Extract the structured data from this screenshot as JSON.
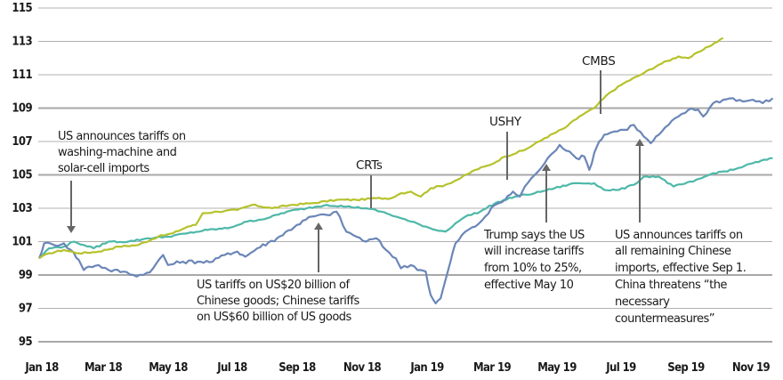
{
  "chart_data": {
    "type": "line",
    "title": "",
    "xlabel": "",
    "ylabel": "",
    "ylim": [
      95,
      115
    ],
    "y_ticks": [
      95,
      97,
      99,
      101,
      103,
      105,
      107,
      109,
      111,
      113,
      115
    ],
    "x_tick_labels": [
      "Jan 18",
      "Mar 18",
      "May 18",
      "Jul 18",
      "Sep 18",
      "Nov 18",
      "Jan 19",
      "Mar 19",
      "May 19",
      "Jul 19",
      "Sep 19",
      "Nov 19"
    ],
    "grid": true,
    "legend": "inline labels",
    "x": [
      "2018-01",
      "2018-02",
      "2018-03",
      "2018-04",
      "2018-05",
      "2018-06",
      "2018-07",
      "2018-08",
      "2018-09",
      "2018-10",
      "2018-11",
      "2018-12",
      "2019-01",
      "2019-02",
      "2019-03",
      "2019-04",
      "2019-05",
      "2019-06",
      "2019-07",
      "2019-08",
      "2019-09",
      "2019-10",
      "2019-11",
      "2019-12"
    ],
    "series": [
      {
        "name": "CMBS",
        "color": "#b5c22b",
        "points": [
          [
            0,
            100.0
          ],
          [
            10,
            100.3
          ],
          [
            25,
            100.5
          ],
          [
            40,
            100.3
          ],
          [
            60,
            100.4
          ],
          [
            80,
            100.7
          ],
          [
            100,
            100.8
          ],
          [
            120,
            101.3
          ],
          [
            135,
            101.5
          ],
          [
            150,
            101.9
          ],
          [
            158,
            102.0
          ],
          [
            165,
            102.7
          ],
          [
            180,
            102.8
          ],
          [
            200,
            102.9
          ],
          [
            215,
            103.2
          ],
          [
            235,
            103.0
          ],
          [
            255,
            103.2
          ],
          [
            275,
            103.3
          ],
          [
            300,
            103.5
          ],
          [
            320,
            103.5
          ],
          [
            340,
            103.6
          ],
          [
            355,
            103.6
          ],
          [
            365,
            103.9
          ],
          [
            375,
            104.0
          ],
          [
            385,
            103.7
          ],
          [
            395,
            104.2
          ],
          [
            410,
            104.4
          ],
          [
            425,
            104.8
          ],
          [
            440,
            105.3
          ],
          [
            455,
            105.6
          ],
          [
            470,
            106.1
          ],
          [
            490,
            106.5
          ],
          [
            510,
            107.2
          ],
          [
            530,
            107.8
          ],
          [
            545,
            108.5
          ],
          [
            560,
            109.0
          ],
          [
            575,
            109.9
          ],
          [
            590,
            110.5
          ],
          [
            610,
            111.1
          ],
          [
            625,
            111.6
          ],
          [
            645,
            112.1
          ],
          [
            655,
            112.0
          ],
          [
            670,
            112.5
          ],
          [
            690,
            113.2
          ]
        ]
      },
      {
        "name": "USHY",
        "color": "#6b86b8",
        "points": [
          [
            0,
            100.0
          ],
          [
            5,
            100.9
          ],
          [
            15,
            100.8
          ],
          [
            25,
            100.9
          ],
          [
            32,
            100.5
          ],
          [
            40,
            99.9
          ],
          [
            45,
            99.3
          ],
          [
            50,
            99.5
          ],
          [
            60,
            99.6
          ],
          [
            70,
            99.3
          ],
          [
            85,
            99.2
          ],
          [
            95,
            99.0
          ],
          [
            105,
            99.0
          ],
          [
            115,
            99.4
          ],
          [
            125,
            100.2
          ],
          [
            130,
            99.6
          ],
          [
            145,
            99.8
          ],
          [
            160,
            99.8
          ],
          [
            175,
            99.8
          ],
          [
            190,
            100.3
          ],
          [
            200,
            100.4
          ],
          [
            208,
            100.1
          ],
          [
            220,
            100.6
          ],
          [
            240,
            101.2
          ],
          [
            260,
            102.0
          ],
          [
            275,
            102.5
          ],
          [
            290,
            102.6
          ],
          [
            300,
            102.8
          ],
          [
            310,
            101.6
          ],
          [
            320,
            101.3
          ],
          [
            330,
            101.0
          ],
          [
            340,
            101.2
          ],
          [
            350,
            100.5
          ],
          [
            360,
            100.0
          ],
          [
            365,
            99.4
          ],
          [
            375,
            99.6
          ],
          [
            385,
            99.3
          ],
          [
            390,
            99.2
          ],
          [
            395,
            97.8
          ],
          [
            400,
            97.3
          ],
          [
            405,
            97.6
          ],
          [
            410,
            98.7
          ],
          [
            415,
            99.8
          ],
          [
            420,
            100.9
          ],
          [
            430,
            101.6
          ],
          [
            440,
            101.9
          ],
          [
            450,
            102.5
          ],
          [
            460,
            103.2
          ],
          [
            470,
            103.5
          ],
          [
            478,
            104.0
          ],
          [
            485,
            103.7
          ],
          [
            490,
            104.3
          ],
          [
            500,
            105.0
          ],
          [
            510,
            105.7
          ],
          [
            518,
            106.3
          ],
          [
            525,
            106.8
          ],
          [
            535,
            106.4
          ],
          [
            542,
            106.0
          ],
          [
            550,
            106.1
          ],
          [
            555,
            105.3
          ],
          [
            560,
            106.3
          ],
          [
            565,
            107.0
          ],
          [
            570,
            107.4
          ],
          [
            580,
            107.6
          ],
          [
            590,
            107.7
          ],
          [
            600,
            108.0
          ],
          [
            610,
            107.3
          ],
          [
            617,
            106.9
          ],
          [
            625,
            107.4
          ],
          [
            635,
            108.0
          ],
          [
            645,
            108.5
          ],
          [
            655,
            108.9
          ],
          [
            665,
            108.9
          ],
          [
            670,
            108.5
          ],
          [
            680,
            109.3
          ],
          [
            690,
            109.5
          ],
          [
            700,
            109.6
          ],
          [
            710,
            109.4
          ],
          [
            720,
            109.5
          ],
          [
            730,
            109.3
          ],
          [
            740,
            109.6
          ]
        ]
      },
      {
        "name": "CRTs",
        "color": "#4db8a8",
        "points": [
          [
            0,
            100.0
          ],
          [
            10,
            100.6
          ],
          [
            25,
            100.7
          ],
          [
            35,
            101.0
          ],
          [
            45,
            100.8
          ],
          [
            55,
            100.6
          ],
          [
            70,
            101.0
          ],
          [
            90,
            101.0
          ],
          [
            110,
            101.2
          ],
          [
            130,
            101.3
          ],
          [
            150,
            101.5
          ],
          [
            170,
            101.7
          ],
          [
            190,
            101.8
          ],
          [
            210,
            102.2
          ],
          [
            230,
            102.4
          ],
          [
            250,
            102.8
          ],
          [
            270,
            103.0
          ],
          [
            290,
            103.2
          ],
          [
            310,
            103.1
          ],
          [
            330,
            103.0
          ],
          [
            345,
            102.8
          ],
          [
            360,
            102.5
          ],
          [
            375,
            102.2
          ],
          [
            390,
            101.9
          ],
          [
            400,
            101.7
          ],
          [
            410,
            101.6
          ],
          [
            420,
            102.1
          ],
          [
            430,
            102.5
          ],
          [
            445,
            102.8
          ],
          [
            460,
            103.3
          ],
          [
            480,
            103.7
          ],
          [
            500,
            103.9
          ],
          [
            520,
            104.2
          ],
          [
            540,
            104.5
          ],
          [
            560,
            104.5
          ],
          [
            570,
            104.1
          ],
          [
            585,
            104.1
          ],
          [
            600,
            104.4
          ],
          [
            610,
            104.9
          ],
          [
            625,
            104.9
          ],
          [
            640,
            104.3
          ],
          [
            660,
            104.6
          ],
          [
            680,
            105.1
          ],
          [
            700,
            105.3
          ],
          [
            720,
            105.7
          ],
          [
            740,
            106.0
          ]
        ]
      }
    ],
    "series_labels": [
      {
        "name": "CMBS",
        "text": "CMBS"
      },
      {
        "name": "USHY",
        "text": "USHY"
      },
      {
        "name": "CRTs",
        "text": "CRTs"
      }
    ],
    "annotations": [
      {
        "id": "washing-machine",
        "lines": [
          "US announces tariffs on",
          "washing-machine and",
          "solar-cell imports"
        ],
        "date": "2018-01-22"
      },
      {
        "id": "us-20bn",
        "lines": [
          "US tariffs on US$20 billion of",
          "Chinese goods; Chinese tariffs",
          "on US$60 billion of US goods"
        ],
        "date": "2018-08-23"
      },
      {
        "id": "trump-25pct",
        "lines": [
          "Trump says the US",
          "will increase tariffs",
          "from 10% to 25%,",
          "effective May 10"
        ],
        "date": "2019-05-05"
      },
      {
        "id": "all-remaining",
        "lines": [
          "US announces tariffs on",
          "all remaining Chinese",
          "imports, effective Sep 1.",
          "China threatens “the",
          "necessary",
          "countermeasures”"
        ],
        "date": "2019-08-01"
      }
    ]
  },
  "labels": {
    "y": [
      "115",
      "113",
      "111",
      "109",
      "107",
      "105",
      "103",
      "101",
      "99",
      "97",
      "95"
    ],
    "x": [
      "Jan 18",
      "Mar 18",
      "May 18",
      "Jul 18",
      "Sep 18",
      "Nov 18",
      "Jan 19",
      "Mar 19",
      "May 19",
      "Jul 19",
      "Sep 19",
      "Nov 19"
    ],
    "cmbs": "CMBS",
    "ushy": "USHY",
    "crts": "CRTs",
    "a1": [
      "US announces tariffs on",
      "washing-machine and",
      "solar-cell imports"
    ],
    "a2": [
      "US tariffs on US$20 billion of",
      "Chinese goods; Chinese tariffs",
      "on US$60 billion of US goods"
    ],
    "a3": [
      "Trump says the US",
      "will increase tariffs",
      "from 10% to 25%,",
      "effective May 10"
    ],
    "a4": [
      "US announces tariffs on",
      "all remaining Chinese",
      "imports, effective Sep 1.",
      "China threatens “the",
      "necessary",
      "countermeasures”"
    ]
  },
  "colors": {
    "grid": "#b0b0b0",
    "grid_strong": "#a8a8a8",
    "arrow": "#666666",
    "cmbs": "#b5c22b",
    "ushy": "#6b86b8",
    "crts": "#4db8a8",
    "text": "#1a1a1a"
  }
}
